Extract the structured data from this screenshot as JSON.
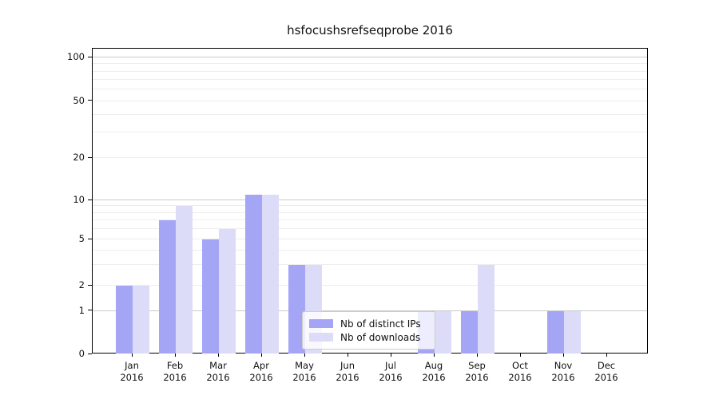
{
  "title": "hsfocushsrefseqprobe 2016",
  "chart_data": {
    "type": "bar",
    "categories": [
      "Jan",
      "Feb",
      "Mar",
      "Apr",
      "May",
      "Jun",
      "Jul",
      "Aug",
      "Sep",
      "Oct",
      "Nov",
      "Dec"
    ],
    "x_sublabel_year": "2016",
    "series": [
      {
        "name": "Nb of distinct IPs",
        "color": "#a5a5f5",
        "values": [
          2,
          7,
          5,
          11,
          3,
          0,
          0,
          1,
          1,
          0,
          1,
          0
        ]
      },
      {
        "name": "Nb of downloads",
        "color": "#dcdcf8",
        "values": [
          2,
          9,
          6,
          11,
          3,
          0,
          0,
          1,
          3,
          0,
          1,
          0
        ]
      }
    ],
    "y_ticks": [
      0,
      1,
      2,
      5,
      10,
      20,
      50,
      100
    ],
    "y_major_gridlines": [
      1,
      10,
      100
    ],
    "y_minor_gridlines": [
      2,
      3,
      4,
      5,
      6,
      7,
      8,
      9,
      20,
      30,
      40,
      50,
      60,
      70,
      80,
      90
    ],
    "y_scale": "log-like (symlog, 0 shown)",
    "ylim": [
      0,
      110
    ],
    "xlabel": "",
    "ylabel": "",
    "grid": "horizontal major+minor",
    "legend_position": "inside lower-center-left"
  },
  "colors": {
    "major_grid": "#c9c9c9",
    "minor_grid": "#ededed",
    "spine": "#000000",
    "text": "#111111"
  }
}
